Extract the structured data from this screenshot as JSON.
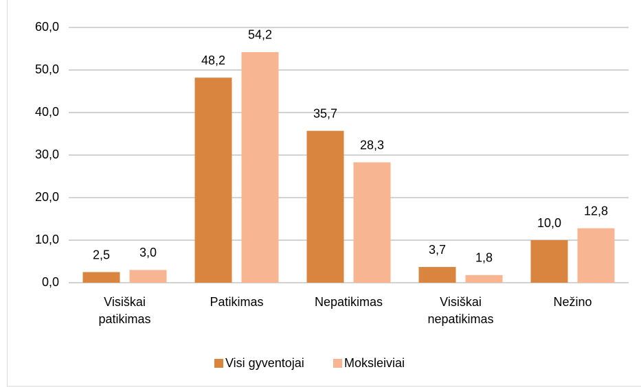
{
  "chart_data": {
    "type": "bar",
    "categories": [
      "Visiškai patikimas",
      "Patikimas",
      "Nepatikimas",
      "Visiškai nepatikimas",
      "Nežino"
    ],
    "series": [
      {
        "name": "Visi gyventojai",
        "color": "#d9843f",
        "values": [
          2.5,
          48.2,
          35.7,
          3.7,
          10.0
        ],
        "value_labels": [
          "2,5",
          "48,2",
          "35,7",
          "3,7",
          "10,0"
        ]
      },
      {
        "name": "Moksleiviai",
        "color": "#f8b592",
        "values": [
          3.0,
          54.2,
          28.3,
          1.8,
          12.8
        ],
        "value_labels": [
          "3,0",
          "54,2",
          "28,3",
          "1,8",
          "12,8"
        ]
      }
    ],
    "ylim": [
      0,
      60
    ],
    "yticks": [
      {
        "value": 0,
        "label": "0,0"
      },
      {
        "value": 10,
        "label": "10,0"
      },
      {
        "value": 20,
        "label": "20,0"
      },
      {
        "value": 30,
        "label": "30,0"
      },
      {
        "value": 40,
        "label": "40,0"
      },
      {
        "value": 50,
        "label": "50,0"
      },
      {
        "value": 60,
        "label": "60,0"
      }
    ],
    "grid": true,
    "legend": "bottom"
  }
}
